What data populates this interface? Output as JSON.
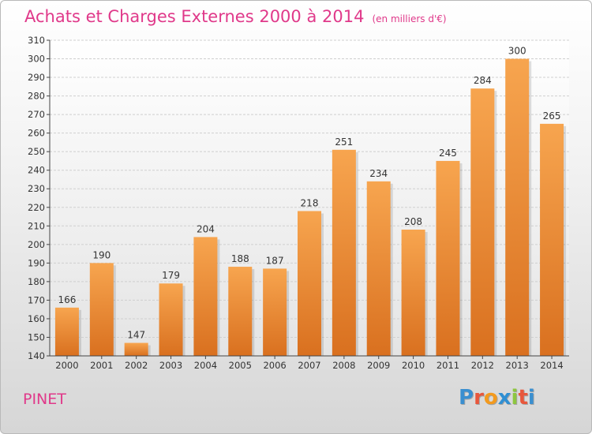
{
  "header": {
    "title": "Achats et Charges Externes 2000 à 2014",
    "subtitle": "(en milliers d'€)"
  },
  "footer": {
    "commune": "PINET",
    "logo_letters": [
      "P",
      "r",
      "o",
      "x",
      "i",
      "t",
      "i"
    ],
    "logo_colors": [
      "#3a8fd0",
      "#e8573c",
      "#f39a1e",
      "#2f8fd3",
      "#8dc63f",
      "#e8573c",
      "#3a8fd0"
    ]
  },
  "colors": {
    "bar_top": "#f7a54f",
    "bar_bottom": "#d9701f",
    "title": "#e0398a",
    "grid": "#cfcfcf"
  },
  "chart_data": {
    "type": "bar",
    "categories": [
      "2000",
      "2001",
      "2002",
      "2003",
      "2004",
      "2005",
      "2006",
      "2007",
      "2008",
      "2009",
      "2010",
      "2011",
      "2012",
      "2013",
      "2014"
    ],
    "values": [
      166,
      190,
      147,
      179,
      204,
      188,
      187,
      218,
      251,
      234,
      208,
      245,
      284,
      300,
      265
    ],
    "ylim": [
      140,
      310
    ],
    "yticks": [
      140,
      150,
      160,
      170,
      180,
      190,
      200,
      210,
      220,
      230,
      240,
      250,
      260,
      270,
      280,
      290,
      300,
      310
    ],
    "data_labels": true,
    "grid": true
  }
}
